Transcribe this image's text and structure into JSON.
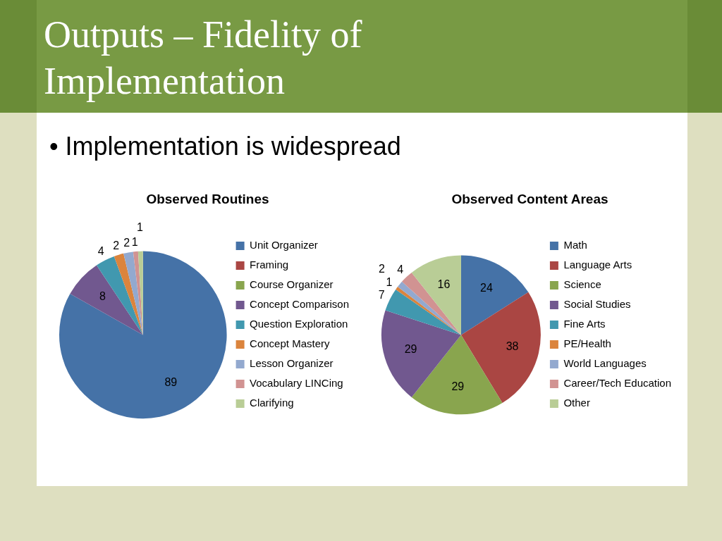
{
  "chart_data": [
    {
      "type": "other",
      "title": "Outputs – Fidelity of Implementation",
      "annotations": [
        "• Implementation is widespread"
      ]
    },
    {
      "type": "pie",
      "title": "Observed Routines",
      "categories": [
        "Unit Organizer",
        "Framing",
        "Course Organizer",
        "Concept Comparison",
        "Question Exploration",
        "Concept Mastery",
        "Lesson Organizer",
        "Vocabulary LINCing",
        "Clarifying"
      ],
      "values": [
        89,
        null,
        null,
        8,
        4,
        2,
        2,
        1,
        1
      ],
      "colors": [
        "#4572a7",
        "#aa4643",
        "#89a54e",
        "#71588f",
        "#4198af",
        "#db843d",
        "#93a9cf",
        "#d19392",
        "#b9cd96"
      ],
      "legend": "right",
      "data_labels": true
    },
    {
      "type": "pie",
      "title": "Observed Content Areas",
      "categories": [
        "Math",
        "Language Arts",
        "Science",
        "Social Studies",
        "Fine Arts",
        "PE/Health",
        "World Languages",
        "Career/Tech Education",
        "Other"
      ],
      "values": [
        24,
        38,
        29,
        29,
        7,
        1,
        2,
        4,
        16
      ],
      "colors": [
        "#4572a7",
        "#aa4643",
        "#89a54e",
        "#71588f",
        "#4198af",
        "#db843d",
        "#93a9cf",
        "#d19392",
        "#b9cd96"
      ],
      "legend": "right",
      "data_labels": true
    }
  ]
}
